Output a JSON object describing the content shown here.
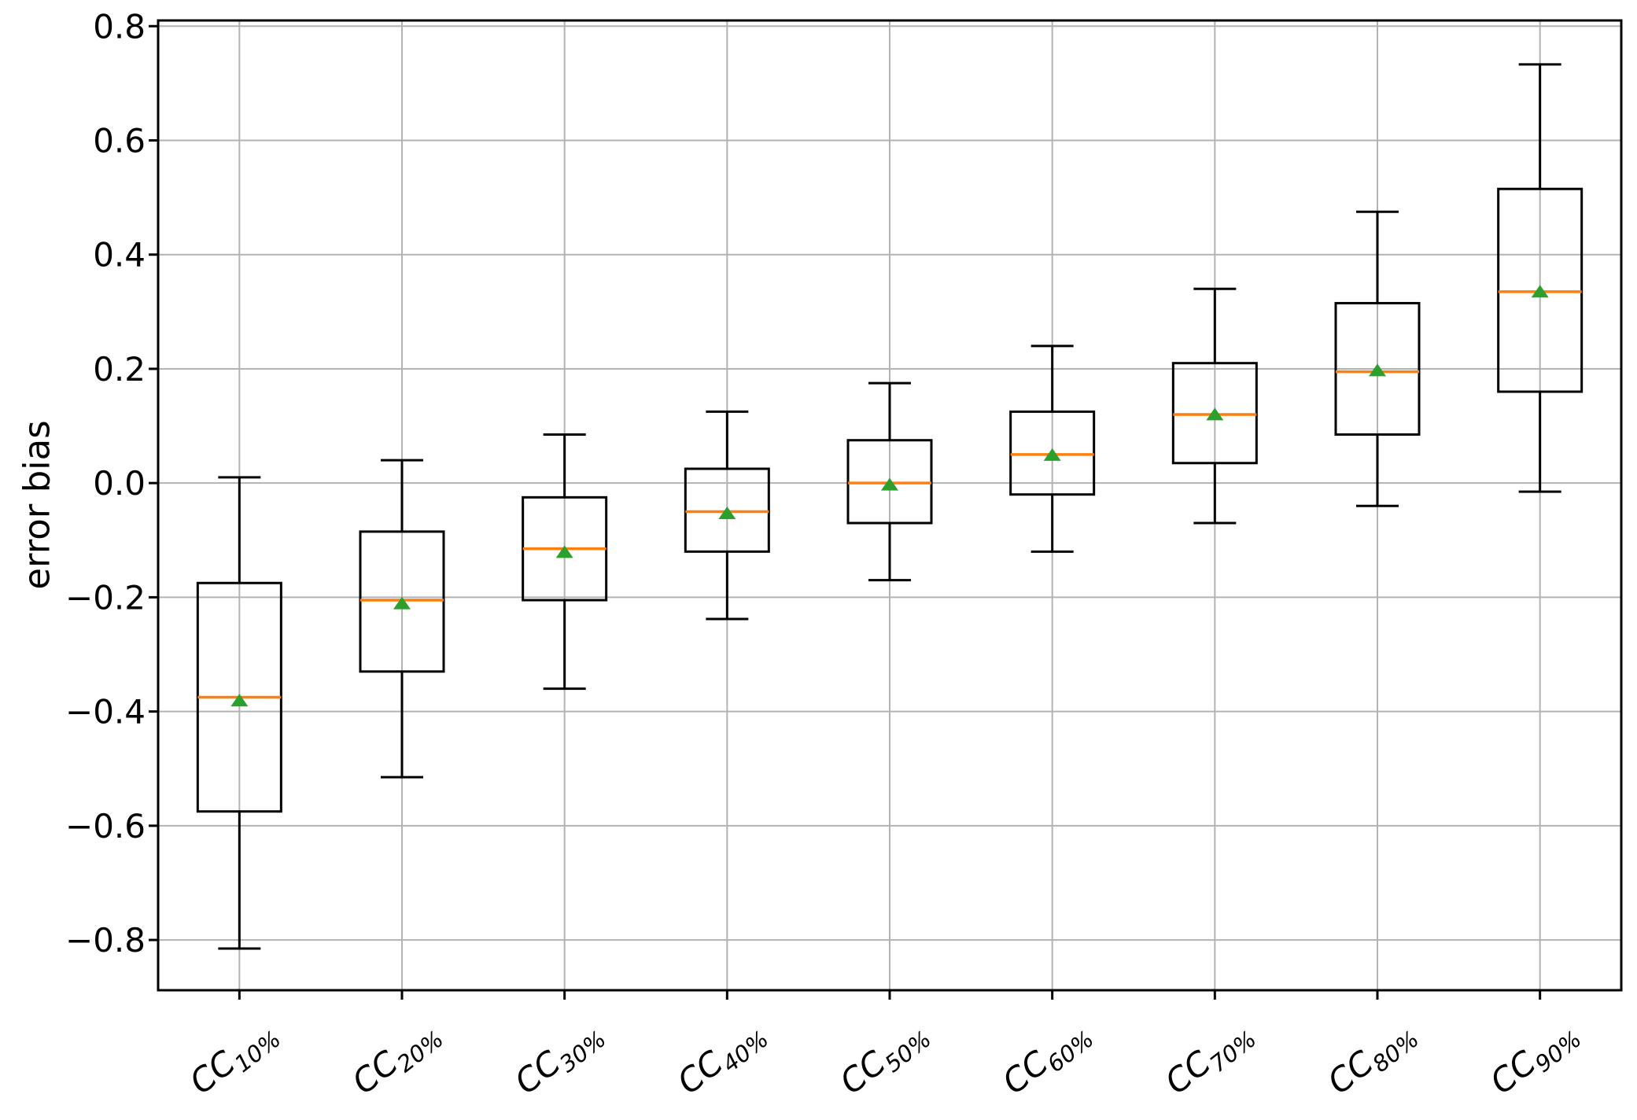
{
  "chart_data": {
    "type": "boxplot",
    "title": "",
    "xlabel": "",
    "ylabel": "error bias",
    "ylim": [
      -0.888,
      0.81
    ],
    "grid": true,
    "yticks": {
      "values": [
        0.8,
        0.6,
        0.4,
        0.2,
        0.0,
        -0.2,
        -0.4,
        -0.6,
        -0.8
      ],
      "labels": [
        "0.8",
        "0.6",
        "0.4",
        "0.2",
        "0.0",
        "−0.2",
        "−0.4",
        "−0.6",
        "−0.8"
      ]
    },
    "categories": [
      {
        "base": "CC",
        "sub": "10%",
        "label": "CC10%"
      },
      {
        "base": "CC",
        "sub": "20%",
        "label": "CC20%"
      },
      {
        "base": "CC",
        "sub": "30%",
        "label": "CC30%"
      },
      {
        "base": "CC",
        "sub": "40%",
        "label": "CC40%"
      },
      {
        "base": "CC",
        "sub": "50%",
        "label": "CC50%"
      },
      {
        "base": "CC",
        "sub": "60%",
        "label": "CC60%"
      },
      {
        "base": "CC",
        "sub": "70%",
        "label": "CC70%"
      },
      {
        "base": "CC",
        "sub": "80%",
        "label": "CC80%"
      },
      {
        "base": "CC",
        "sub": "90%",
        "label": "CC90%"
      }
    ],
    "boxes": [
      {
        "label": "CC10%",
        "whislo": -0.815,
        "q1": -0.575,
        "med": -0.375,
        "mean": -0.38,
        "q3": -0.175,
        "whishi": 0.01
      },
      {
        "label": "CC20%",
        "whislo": -0.515,
        "q1": -0.33,
        "med": -0.205,
        "mean": -0.21,
        "q3": -0.085,
        "whishi": 0.04
      },
      {
        "label": "CC30%",
        "whislo": -0.36,
        "q1": -0.205,
        "med": -0.115,
        "mean": -0.12,
        "q3": -0.025,
        "whishi": 0.085
      },
      {
        "label": "CC40%",
        "whislo": -0.238,
        "q1": -0.12,
        "med": -0.05,
        "mean": -0.052,
        "q3": 0.025,
        "whishi": 0.125
      },
      {
        "label": "CC50%",
        "whislo": -0.17,
        "q1": -0.07,
        "med": 0.0,
        "mean": -0.002,
        "q3": 0.075,
        "whishi": 0.175
      },
      {
        "label": "CC60%",
        "whislo": -0.12,
        "q1": -0.02,
        "med": 0.05,
        "mean": 0.05,
        "q3": 0.125,
        "whishi": 0.24
      },
      {
        "label": "CC70%",
        "whislo": -0.07,
        "q1": 0.035,
        "med": 0.12,
        "mean": 0.121,
        "q3": 0.21,
        "whishi": 0.34
      },
      {
        "label": "CC80%",
        "whislo": -0.04,
        "q1": 0.085,
        "med": 0.195,
        "mean": 0.198,
        "q3": 0.315,
        "whishi": 0.475
      },
      {
        "label": "CC90%",
        "whislo": -0.015,
        "q1": 0.16,
        "med": 0.335,
        "mean": 0.336,
        "q3": 0.515,
        "whishi": 0.733
      }
    ],
    "colors": {
      "median": "#ff7f0e",
      "mean": "#2ca02c",
      "box_edge": "#000000",
      "whisker": "#000000",
      "grid": "#b3b3b3",
      "spine": "#000000",
      "tick_label": "#000000"
    }
  }
}
